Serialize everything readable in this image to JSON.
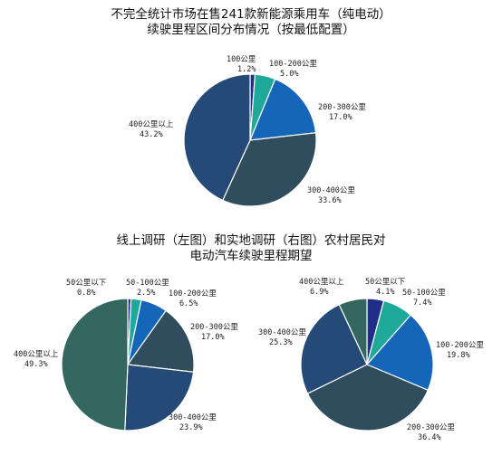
{
  "titles": {
    "top": [
      "不完全统计市场在售241款新能源乘用车（纯电动）",
      "续驶里程区间分布情况（按最低配置）"
    ],
    "bottom": [
      "线上调研（左图）和实地调研（右图）农村居民对",
      "电动汽车续驶里程期望"
    ]
  },
  "chart_data": [
    {
      "type": "pie",
      "categories": [
        "100公里",
        "100-200公里",
        "200-300公里",
        "300-400公里",
        "400公里以上"
      ],
      "values": [
        1.2,
        5.0,
        17.0,
        33.6,
        43.2
      ],
      "labels": [
        "1.2%",
        "5.0%",
        "17.0%",
        "33.6%",
        "43.2%"
      ],
      "colors": [
        "#1f2f88",
        "#1fa99a",
        "#1566b8",
        "#2f4d5c",
        "#254a78"
      ]
    },
    {
      "type": "pie",
      "categories": [
        "50公里以下",
        "50-100公里",
        "100-200公里",
        "200-300公里",
        "300-400公里",
        "400公里以上"
      ],
      "values": [
        0.8,
        2.5,
        6.5,
        17.0,
        23.9,
        49.3
      ],
      "labels": [
        "0.8%",
        "2.5%",
        "6.5%",
        "17.0%",
        "23.9%",
        "49.3%"
      ],
      "colors": [
        "#1f2f88",
        "#1fa99a",
        "#1566b8",
        "#2f4d5c",
        "#254a78",
        "#33675f"
      ]
    },
    {
      "type": "pie",
      "categories": [
        "50公里以下",
        "50-100公里",
        "100-200公里",
        "200-300公里",
        "300-400公里",
        "400公里以上"
      ],
      "values": [
        4.1,
        7.4,
        19.8,
        36.4,
        25.3,
        6.9
      ],
      "labels": [
        "4.1%",
        "7.4%",
        "19.8%",
        "36.4%",
        "25.3%",
        "6.9%"
      ],
      "colors": [
        "#1f2f88",
        "#1fa99a",
        "#1566b8",
        "#2f4d5c",
        "#254a78",
        "#33675f"
      ]
    }
  ]
}
